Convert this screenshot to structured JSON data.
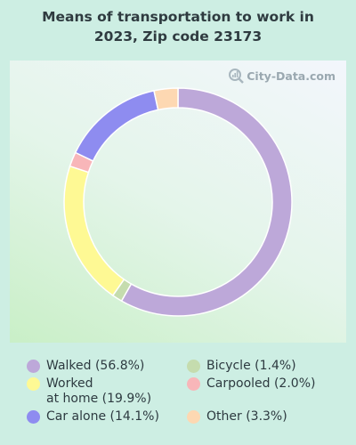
{
  "chart_data": {
    "type": "pie",
    "subtype": "donut",
    "title": "Means of transportation to work in 2023, Zip code 23173",
    "series": [
      {
        "name": "Walked",
        "value": 56.8,
        "label": "Walked (56.8%)",
        "color": "#bda8d9"
      },
      {
        "name": "Bicycle",
        "value": 1.4,
        "label": "Bicycle (1.4%)",
        "color": "#c5dcae"
      },
      {
        "name": "Worked at home",
        "value": 19.9,
        "label": "Worked\nat home (19.9%)",
        "color": "#fef994"
      },
      {
        "name": "Carpooled",
        "value": 2.0,
        "label": "Carpooled (2.0%)",
        "color": "#f8b6b9"
      },
      {
        "name": "Car alone",
        "value": 14.1,
        "label": "Car alone (14.1%)",
        "color": "#8e8cf0"
      },
      {
        "name": "Other",
        "value": 3.3,
        "label": "Other (3.3%)",
        "color": "#fdd8b2"
      }
    ],
    "legend_order": [
      "Walked",
      "Worked at home",
      "Car alone",
      "Bicycle",
      "Carpooled",
      "Other"
    ],
    "legend_position": "bottom"
  },
  "watermark": "City-Data.com"
}
